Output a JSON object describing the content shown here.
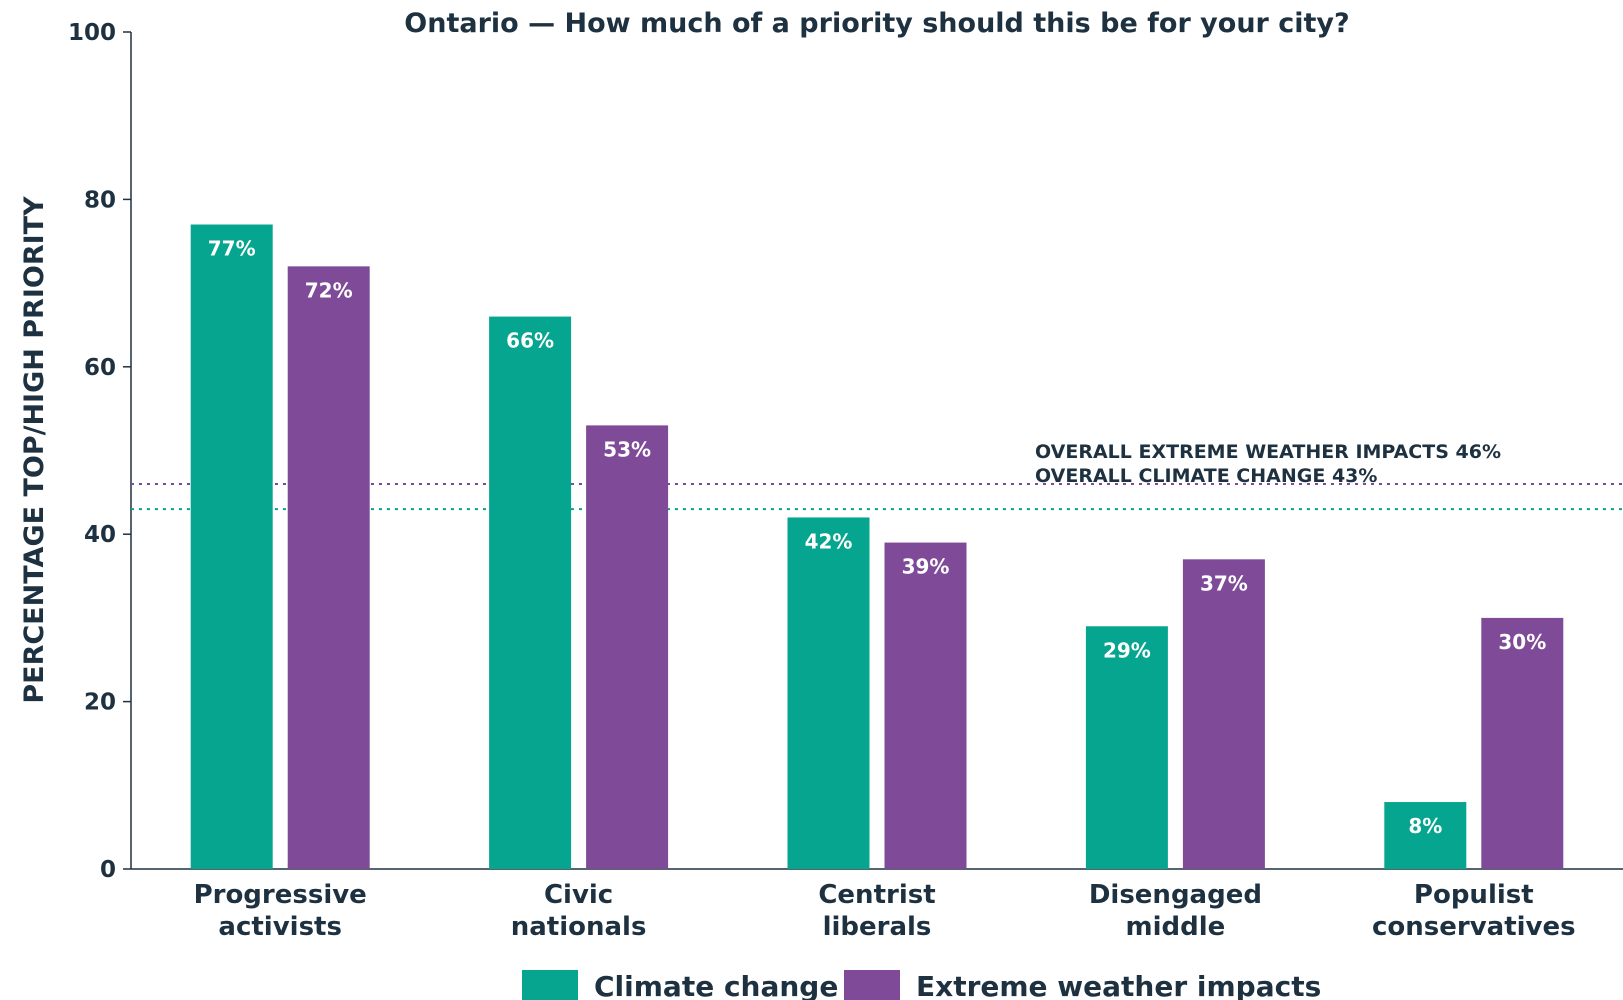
{
  "chart_data": {
    "type": "bar",
    "title": "Ontario — How much of a priority should this be for your city?",
    "ylabel": "PERCENTAGE TOP/HIGH PRIORITY",
    "xlabel": "",
    "ylim": [
      0,
      100
    ],
    "yticks": [
      0,
      20,
      40,
      60,
      80,
      100
    ],
    "categories": [
      [
        "Progressive",
        "activists"
      ],
      [
        "Civic",
        "nationals"
      ],
      [
        "Centrist",
        "liberals"
      ],
      [
        "Disengaged",
        "middle"
      ],
      [
        "Populist",
        "conservatives"
      ]
    ],
    "series": [
      {
        "name": "Climate change",
        "color": "#06a58f",
        "values": [
          77,
          66,
          42,
          29,
          8
        ],
        "labels": [
          "77%",
          "66%",
          "42%",
          "29%",
          "8%"
        ]
      },
      {
        "name": "Extreme weather impacts",
        "color": "#7f4a98",
        "values": [
          72,
          53,
          39,
          37,
          30
        ],
        "labels": [
          "72%",
          "53%",
          "39%",
          "37%",
          "30%"
        ]
      }
    ],
    "reference_lines": [
      {
        "label": "OVERALL EXTREME WEATHER IMPACTS 46%",
        "value": 46,
        "color": "#7f4a98"
      },
      {
        "label": "OVERALL CLIMATE CHANGE 43%",
        "value": 43,
        "color": "#06a58f"
      }
    ],
    "grid": false,
    "legend": "bottom"
  }
}
